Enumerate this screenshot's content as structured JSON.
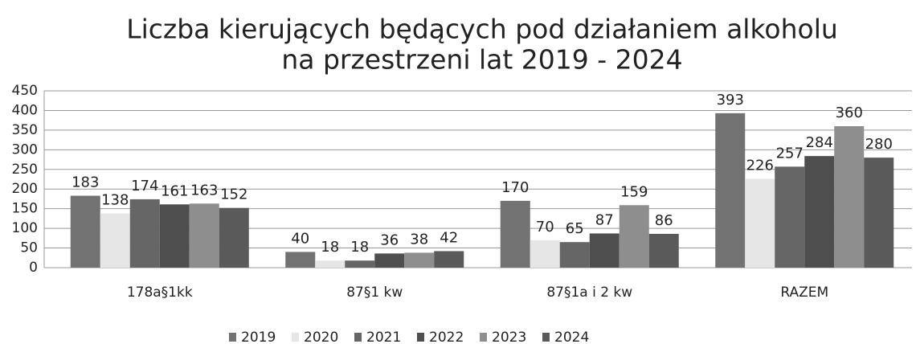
{
  "chart_data": {
    "type": "bar",
    "title": [
      "Liczba kierujących będących pod działaniem alkoholu",
      "na przestrzeni lat 2019 - 2024"
    ],
    "categories": [
      "178a§1kk",
      "87§1 kw",
      "87§1a i 2 kw",
      "RAZEM"
    ],
    "series": [
      {
        "name": "2019",
        "color": "#727272",
        "values": [
          183,
          40,
          170,
          393
        ]
      },
      {
        "name": "2020",
        "color": "#e6e6e6",
        "values": [
          138,
          18,
          70,
          226
        ]
      },
      {
        "name": "2021",
        "color": "#666666",
        "values": [
          174,
          18,
          65,
          257
        ]
      },
      {
        "name": "2022",
        "color": "#4e4e4e",
        "values": [
          161,
          36,
          87,
          284
        ]
      },
      {
        "name": "2023",
        "color": "#8e8e8e",
        "values": [
          163,
          38,
          159,
          360
        ]
      },
      {
        "name": "2024",
        "color": "#5a5a5a",
        "values": [
          152,
          42,
          86,
          280
        ]
      }
    ],
    "ylim": [
      0,
      450
    ],
    "yticks": [
      0,
      50,
      100,
      150,
      200,
      250,
      300,
      350,
      400,
      450
    ],
    "grid": true,
    "legend": "bottom"
  }
}
